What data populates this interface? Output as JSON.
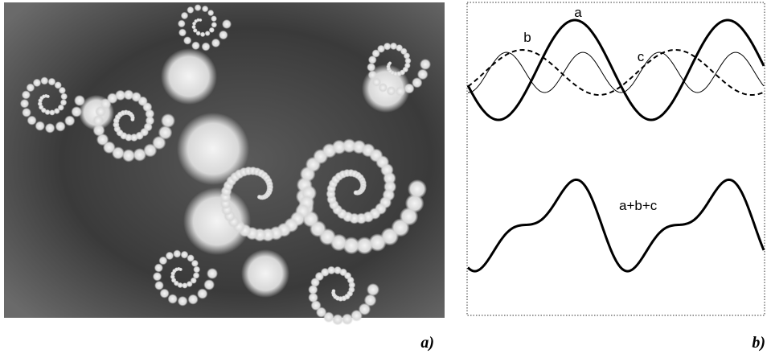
{
  "panels": [
    {
      "label": "a)"
    },
    {
      "label": "b)",
      "curves": [
        "a",
        "b",
        "c",
        "a+b+c"
      ]
    }
  ]
}
